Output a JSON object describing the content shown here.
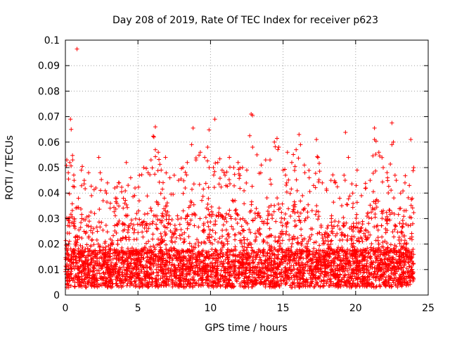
{
  "chart_data": {
    "type": "scatter",
    "title": "Day 208 of 2019, Rate Of TEC Index for receiver p623",
    "xlabel": "GPS time / hours",
    "ylabel": "ROTI / TECUs",
    "xlim": [
      0,
      25
    ],
    "ylim": [
      0,
      0.1
    ],
    "x_ticks": [
      0,
      5,
      10,
      15,
      20,
      25
    ],
    "x_tick_labels": [
      "0",
      "5",
      "10",
      "15",
      "20",
      "25"
    ],
    "y_ticks": [
      0,
      0.01,
      0.02,
      0.03,
      0.04,
      0.05,
      0.06,
      0.07,
      0.08,
      0.09,
      0.1
    ],
    "y_tick_labels": [
      "0",
      "0.01",
      "0.02",
      "0.03",
      "0.04",
      "0.05",
      "0.06",
      "0.07",
      "0.08",
      "0.09",
      "0.1"
    ],
    "grid": true,
    "marker": "+",
    "color": "#ff0000",
    "x_range_of_data": [
      0,
      24
    ],
    "highlighted_outliers": [
      {
        "x": 0.8,
        "y": 0.0965
      },
      {
        "x": 12.8,
        "y": 0.071
      },
      {
        "x": 12.9,
        "y": 0.0705
      },
      {
        "x": 10.3,
        "y": 0.069
      },
      {
        "x": 0.35,
        "y": 0.069
      },
      {
        "x": 22.5,
        "y": 0.0675
      },
      {
        "x": 0.4,
        "y": 0.065
      },
      {
        "x": 6.2,
        "y": 0.066
      },
      {
        "x": 9.9,
        "y": 0.0648
      },
      {
        "x": 19.3,
        "y": 0.0638
      },
      {
        "x": 21.3,
        "y": 0.0655
      },
      {
        "x": 8.8,
        "y": 0.0655
      },
      {
        "x": 16.1,
        "y": 0.063
      },
      {
        "x": 17.3,
        "y": 0.061
      },
      {
        "x": 23.8,
        "y": 0.061
      },
      {
        "x": 22.6,
        "y": 0.06
      },
      {
        "x": 12.7,
        "y": 0.0625
      }
    ],
    "points": [
      [
        0.1,
        0.053
      ],
      [
        0.2,
        0.048
      ],
      [
        0.3,
        0.052
      ],
      [
        0.5,
        0.053
      ],
      [
        0.6,
        0.045
      ],
      [
        0.9,
        0.038
      ],
      [
        1.1,
        0.049
      ],
      [
        1.3,
        0.045
      ],
      [
        1.6,
        0.048
      ],
      [
        1.8,
        0.039
      ],
      [
        2.1,
        0.042
      ],
      [
        2.3,
        0.054
      ],
      [
        2.4,
        0.048
      ],
      [
        2.6,
        0.037
      ],
      [
        2.9,
        0.044
      ],
      [
        3.1,
        0.036
      ],
      [
        3.4,
        0.042
      ],
      [
        3.7,
        0.044
      ],
      [
        4.0,
        0.038
      ],
      [
        4.2,
        0.052
      ],
      [
        4.5,
        0.046
      ],
      [
        4.8,
        0.042
      ],
      [
        5.1,
        0.047
      ],
      [
        5.4,
        0.05
      ],
      [
        5.7,
        0.048
      ],
      [
        5.9,
        0.053
      ],
      [
        6.1,
        0.062
      ],
      [
        6.4,
        0.056
      ],
      [
        6.6,
        0.049
      ],
      [
        6.9,
        0.054
      ],
      [
        7.2,
        0.046
      ],
      [
        7.5,
        0.047
      ],
      [
        7.8,
        0.045
      ],
      [
        8.1,
        0.05
      ],
      [
        8.4,
        0.052
      ],
      [
        8.7,
        0.059
      ],
      [
        9.0,
        0.053
      ],
      [
        9.3,
        0.056
      ],
      [
        9.6,
        0.054
      ],
      [
        9.8,
        0.058
      ],
      [
        10.2,
        0.05
      ],
      [
        10.5,
        0.052
      ],
      [
        10.8,
        0.049
      ],
      [
        11.0,
        0.047
      ],
      [
        11.3,
        0.054
      ],
      [
        11.6,
        0.05
      ],
      [
        11.9,
        0.052
      ],
      [
        12.2,
        0.05
      ],
      [
        12.5,
        0.049
      ],
      [
        12.9,
        0.058
      ],
      [
        13.2,
        0.055
      ],
      [
        13.5,
        0.051
      ],
      [
        13.8,
        0.053
      ],
      [
        14.1,
        0.053
      ],
      [
        14.4,
        0.06
      ],
      [
        14.7,
        0.058
      ],
      [
        15.0,
        0.049
      ],
      [
        15.3,
        0.056
      ],
      [
        15.6,
        0.052
      ],
      [
        15.9,
        0.057
      ],
      [
        16.2,
        0.059
      ],
      [
        16.5,
        0.048
      ],
      [
        16.8,
        0.046
      ],
      [
        17.1,
        0.043
      ],
      [
        17.4,
        0.054
      ],
      [
        17.7,
        0.044
      ],
      [
        18.0,
        0.041
      ],
      [
        18.3,
        0.045
      ],
      [
        18.6,
        0.044
      ],
      [
        18.9,
        0.038
      ],
      [
        19.2,
        0.047
      ],
      [
        19.5,
        0.054
      ],
      [
        19.8,
        0.04
      ],
      [
        20.1,
        0.049
      ],
      [
        20.4,
        0.039
      ],
      [
        20.7,
        0.042
      ],
      [
        21.0,
        0.045
      ],
      [
        21.3,
        0.061
      ],
      [
        21.6,
        0.056
      ],
      [
        21.9,
        0.05
      ],
      [
        22.2,
        0.046
      ],
      [
        22.5,
        0.059
      ],
      [
        22.8,
        0.045
      ],
      [
        23.1,
        0.04
      ],
      [
        23.4,
        0.044
      ],
      [
        23.7,
        0.043
      ],
      [
        24.0,
        0.05
      ]
    ]
  }
}
